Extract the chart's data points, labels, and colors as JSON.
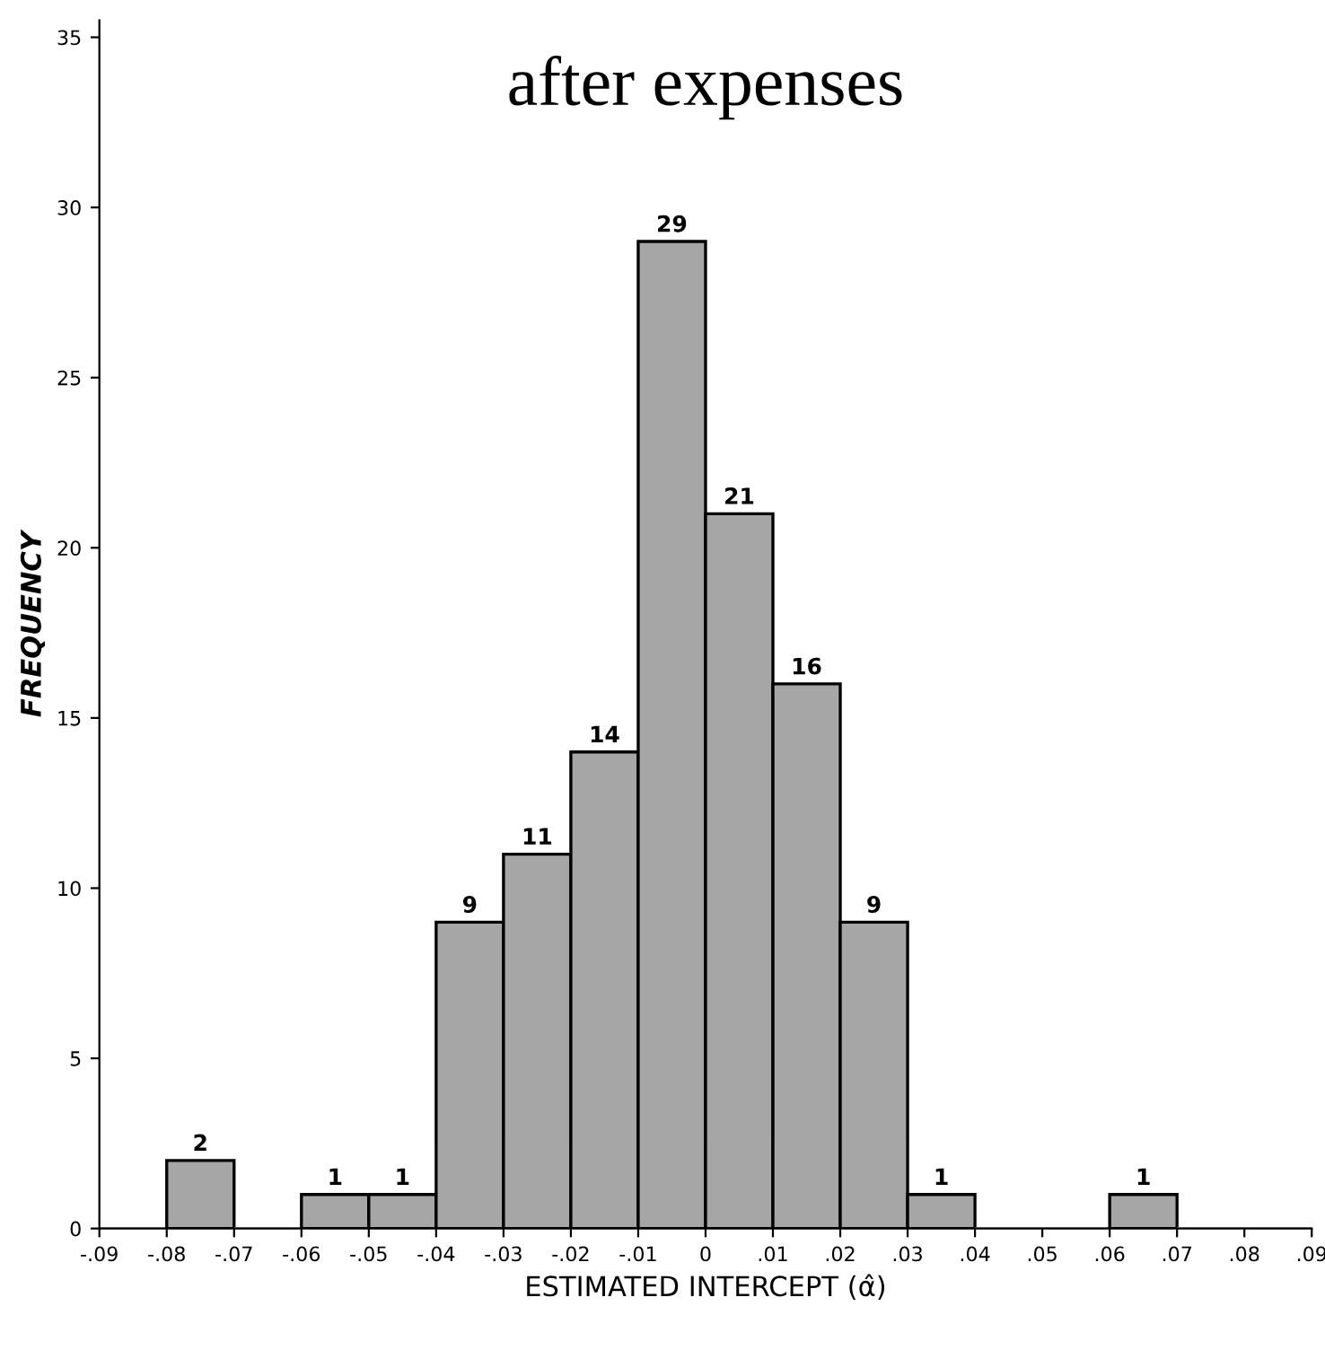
{
  "chart_data": {
    "type": "histogram",
    "title": "after expenses",
    "xlabel": "ESTIMATED INTERCEPT (α̂)",
    "ylabel": "FREQUENCY",
    "bins": [
      -0.09,
      -0.08,
      -0.07,
      -0.06,
      -0.05,
      -0.04,
      -0.03,
      -0.02,
      -0.01,
      0,
      0.01,
      0.02,
      0.03,
      0.04,
      0.05,
      0.06,
      0.07,
      0.08,
      0.09
    ],
    "values": [
      0,
      2,
      0,
      1,
      1,
      9,
      11,
      14,
      29,
      21,
      16,
      9,
      1,
      0,
      0,
      1,
      0,
      0
    ],
    "value_labels": [
      null,
      "2",
      null,
      "1",
      "1",
      "9",
      "11",
      "14",
      "29",
      "21",
      "16",
      "9",
      "1",
      null,
      null,
      "1",
      null,
      null
    ],
    "color": "#a6a6a6",
    "xlim": [
      -0.09,
      0.09
    ],
    "xticks": [
      {
        "value": -0.09,
        "label": "-.09"
      },
      {
        "value": -0.08,
        "label": "-.08"
      },
      {
        "value": -0.07,
        "label": "-.07"
      },
      {
        "value": -0.06,
        "label": "-.06"
      },
      {
        "value": -0.05,
        "label": "-.05"
      },
      {
        "value": -0.04,
        "label": "-.04"
      },
      {
        "value": -0.03,
        "label": "-.03"
      },
      {
        "value": -0.02,
        "label": "-.02"
      },
      {
        "value": -0.01,
        "label": "-.01"
      },
      0,
      {
        "value": 0.01,
        "label": ".01"
      },
      {
        "value": 0.02,
        "label": ".02"
      },
      {
        "value": 0.03,
        "label": ".03"
      },
      {
        "value": 0.04,
        "label": ".04"
      },
      {
        "value": 0.05,
        "label": ".05"
      },
      {
        "value": 0.06,
        "label": ".06"
      },
      {
        "value": 0.07,
        "label": ".07"
      },
      {
        "value": 0.08,
        "label": ".08"
      },
      {
        "value": 0.09,
        "label": ".09"
      }
    ],
    "ylim": [
      0,
      35.5
    ],
    "yticks": [
      0,
      5,
      10,
      15,
      20,
      25,
      30,
      35
    ],
    "grid": false,
    "legend": false
  }
}
